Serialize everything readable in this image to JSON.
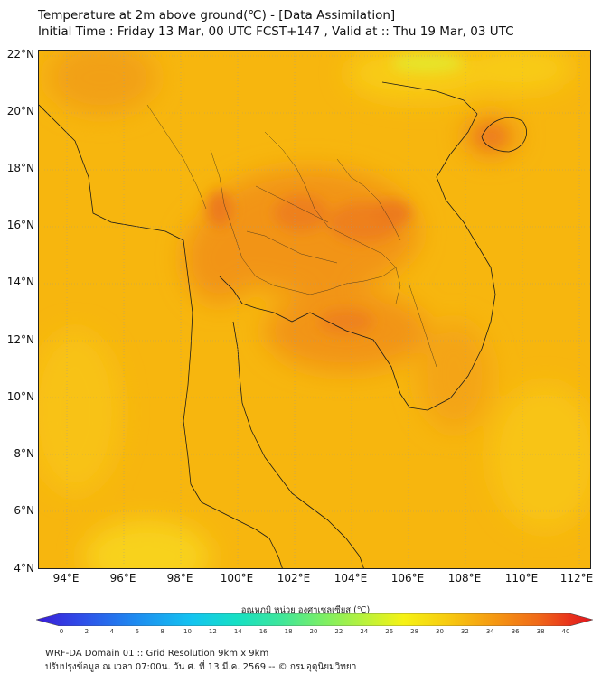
{
  "header": {
    "title_line1": "Temperature at 2m above ground(℃) - [Data Assimilation]",
    "title_line2": "Initial Time : Friday 13 Mar, 00 UTC FCST+147 , Valid at :: Thu 19 Mar, 03 UTC"
  },
  "map": {
    "region": "Mainland Southeast Asia (Thailand, Myanmar, Laos, Cambodia, Vietnam, Malaysia)",
    "lat_labels": [
      "22°N",
      "20°N",
      "18°N",
      "16°N",
      "14°N",
      "12°N",
      "10°N",
      "8°N",
      "6°N",
      "4°N"
    ],
    "lon_labels": [
      "94°E",
      "96°E",
      "98°E",
      "100°E",
      "102°E",
      "104°E",
      "106°E",
      "108°E",
      "110°E",
      "112°E"
    ],
    "lat_range": [
      4,
      22.3
    ],
    "lon_range": [
      93,
      112.5
    ],
    "field_colors": {
      "base": "#f7b80e",
      "warm": "#f49a14",
      "hot": "#ee7a1c",
      "cool": "#f9d21a",
      "coolest": "#dfe82a"
    }
  },
  "colorbar": {
    "title": "อุณหภูมิ หน่วย องศาเซลเซียส (℃)",
    "ticks": [
      "0",
      "2",
      "4",
      "6",
      "8",
      "10",
      "12",
      "14",
      "16",
      "18",
      "20",
      "22",
      "24",
      "26",
      "28",
      "30",
      "32",
      "34",
      "36",
      "38",
      "40"
    ],
    "min": 0,
    "max": 40,
    "colors": [
      "#3a1bd6",
      "#2f4de8",
      "#1e8cf0",
      "#14c4f0",
      "#16e0c4",
      "#3fe69a",
      "#7fef62",
      "#c2f236",
      "#f6f214",
      "#f7ca10",
      "#f59a12",
      "#f06a18",
      "#e8321c",
      "#e0141e"
    ]
  },
  "footer": {
    "line1": "WRF-DA Domain 01 :: Grid Resolution 9km x 9km",
    "line2": "ปรับปรุงข้อมูล ณ เวลา 07:00น. วัน ศ. ที่ 13 มี.ค. 2569 -- © กรมอุตุนิยมวิทยา"
  }
}
